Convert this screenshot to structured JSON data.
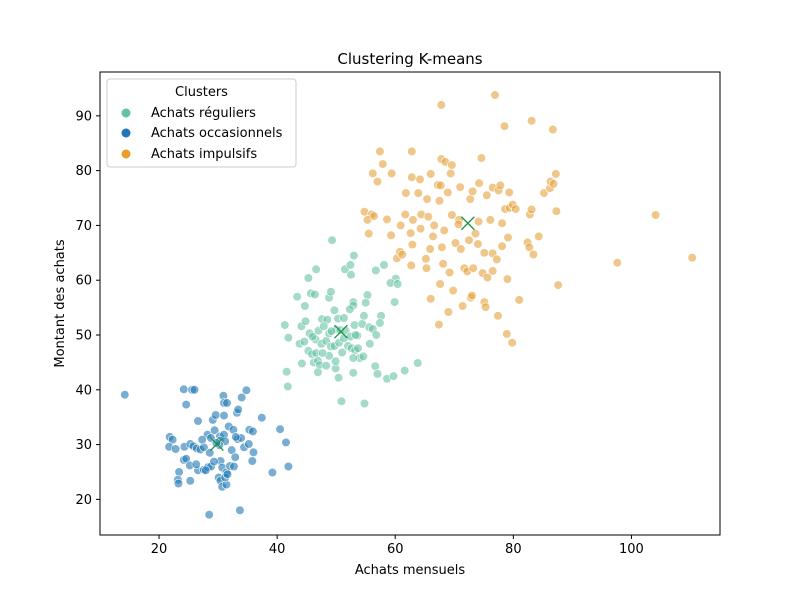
{
  "chart_data": {
    "type": "scatter",
    "title": "Clustering K-means",
    "xlabel": "Achats mensuels",
    "ylabel": "Montant des achats",
    "xlim": [
      10,
      115
    ],
    "ylim": [
      13.5,
      98
    ],
    "xticks": [
      20,
      40,
      60,
      80,
      100
    ],
    "yticks": [
      20,
      30,
      40,
      50,
      60,
      70,
      80,
      90
    ],
    "grid": false,
    "legend": {
      "title": "Clusters",
      "position": "top-left"
    },
    "series": [
      {
        "name": "Achats réguliers",
        "color": "#66c2a5",
        "points": [
          [
            49.3,
            67.3
          ],
          [
            51.5,
            62.0
          ],
          [
            52.4,
            62.8
          ],
          [
            53.0,
            64.5
          ],
          [
            46.6,
            62.0
          ],
          [
            45.3,
            60.4
          ],
          [
            52.5,
            61.0
          ],
          [
            43.4,
            57.0
          ],
          [
            44.7,
            55.3
          ],
          [
            45.7,
            57.6
          ],
          [
            46.4,
            57.4
          ],
          [
            48.8,
            56.8
          ],
          [
            49.1,
            57.9
          ],
          [
            52.9,
            56.0
          ],
          [
            52.9,
            55.4
          ],
          [
            55.3,
            57.3
          ],
          [
            56.7,
            61.8
          ],
          [
            58.1,
            62.8
          ],
          [
            60.1,
            60.3
          ],
          [
            59.2,
            59.5
          ],
          [
            60.4,
            59.3
          ],
          [
            59.9,
            56.0
          ],
          [
            41.3,
            51.8
          ],
          [
            41.9,
            49.5
          ],
          [
            44.1,
            51.6
          ],
          [
            44.8,
            52.5
          ],
          [
            45.5,
            50.3
          ],
          [
            46.5,
            49.2
          ],
          [
            47.0,
            50.8
          ],
          [
            47.6,
            52.9
          ],
          [
            48.5,
            52.8
          ],
          [
            49.7,
            54.5
          ],
          [
            50.3,
            53.0
          ],
          [
            51.3,
            53.1
          ],
          [
            52.3,
            54.7
          ],
          [
            53.1,
            51.8
          ],
          [
            53.6,
            49.9
          ],
          [
            54.4,
            52.0
          ],
          [
            54.7,
            53.5
          ],
          [
            55.6,
            51.4
          ],
          [
            56.2,
            51.1
          ],
          [
            56.8,
            50.0
          ],
          [
            57.6,
            53.5
          ],
          [
            57.4,
            52.2
          ],
          [
            55.0,
            55.9
          ],
          [
            43.8,
            48.4
          ],
          [
            44.6,
            48.8
          ],
          [
            45.3,
            47.1
          ],
          [
            45.9,
            46.5
          ],
          [
            46.6,
            46.7
          ],
          [
            47.5,
            48.4
          ],
          [
            48.3,
            48.9
          ],
          [
            49.1,
            47.9
          ],
          [
            49.7,
            48.0
          ],
          [
            50.5,
            48.6
          ],
          [
            51.3,
            49.4
          ],
          [
            52.0,
            48.0
          ],
          [
            52.6,
            47.6
          ],
          [
            53.2,
            47.2
          ],
          [
            54.0,
            45.8
          ],
          [
            54.6,
            46.1
          ],
          [
            47.9,
            51.6
          ],
          [
            48.8,
            50.3
          ],
          [
            50.0,
            51.0
          ],
          [
            50.7,
            50.9
          ],
          [
            51.6,
            50.8
          ],
          [
            52.4,
            49.7
          ],
          [
            53.3,
            50.0
          ],
          [
            46.2,
            45.0
          ],
          [
            46.9,
            45.3
          ],
          [
            47.2,
            44.5
          ],
          [
            48.3,
            44.4
          ],
          [
            46.9,
            43.2
          ],
          [
            48.8,
            46.2
          ],
          [
            49.9,
            43.9
          ],
          [
            50.4,
            42.2
          ],
          [
            52.9,
            43.1
          ],
          [
            56.6,
            44.3
          ],
          [
            57.0,
            42.9
          ],
          [
            58.6,
            42.0
          ],
          [
            59.7,
            42.5
          ],
          [
            61.6,
            43.5
          ],
          [
            63.8,
            44.9
          ],
          [
            52.9,
            45.8
          ],
          [
            41.6,
            43.3
          ],
          [
            41.8,
            40.6
          ],
          [
            50.9,
            37.9
          ],
          [
            54.8,
            37.5
          ],
          [
            44.2,
            44.8
          ],
          [
            49.2,
            50.7
          ],
          [
            55.7,
            48.4
          ],
          [
            51.0,
            46.8
          ],
          [
            49.9,
            45.2
          ],
          [
            53.7,
            47.6
          ],
          [
            46.0,
            49.7
          ],
          [
            47.7,
            46.7
          ]
        ]
      },
      {
        "name": "Achats occasionnels",
        "color": "#1f78b4",
        "points": [
          [
            14.2,
            39.1
          ],
          [
            24.2,
            40.1
          ],
          [
            25.6,
            40.0
          ],
          [
            26.0,
            40.0
          ],
          [
            24.6,
            37.3
          ],
          [
            30.9,
            38.9
          ],
          [
            31.0,
            37.6
          ],
          [
            31.5,
            37.6
          ],
          [
            34.0,
            38.6
          ],
          [
            34.8,
            39.9
          ],
          [
            26.6,
            34.3
          ],
          [
            29.1,
            34.5
          ],
          [
            29.6,
            35.4
          ],
          [
            31.0,
            35.3
          ],
          [
            31.8,
            33.3
          ],
          [
            33.2,
            35.8
          ],
          [
            33.4,
            36.4
          ],
          [
            37.4,
            34.9
          ],
          [
            40.5,
            32.8
          ],
          [
            28.2,
            31.8
          ],
          [
            28.8,
            31.2
          ],
          [
            29.4,
            32.6
          ],
          [
            30.3,
            31.5
          ],
          [
            31.0,
            31.8
          ],
          [
            32.6,
            32.7
          ],
          [
            33.3,
            31.0
          ],
          [
            33.9,
            31.2
          ],
          [
            35.3,
            32.7
          ],
          [
            35.9,
            32.4
          ],
          [
            41.5,
            30.4
          ],
          [
            21.8,
            31.4
          ],
          [
            22.3,
            30.9
          ],
          [
            21.7,
            29.6
          ],
          [
            22.8,
            29.2
          ],
          [
            24.3,
            29.6
          ],
          [
            25.3,
            30.1
          ],
          [
            25.8,
            29.7
          ],
          [
            26.4,
            29.3
          ],
          [
            27.0,
            29.1
          ],
          [
            27.6,
            29.5
          ],
          [
            28.6,
            28.5
          ],
          [
            30.3,
            30.7
          ],
          [
            31.2,
            30.6
          ],
          [
            32.3,
            29.0
          ],
          [
            33.0,
            31.4
          ],
          [
            34.4,
            29.5
          ],
          [
            35.2,
            30.1
          ],
          [
            36.0,
            28.6
          ],
          [
            24.2,
            27.2
          ],
          [
            24.6,
            27.4
          ],
          [
            25.2,
            26.2
          ],
          [
            26.6,
            25.3
          ],
          [
            27.6,
            25.4
          ],
          [
            28.3,
            25.9
          ],
          [
            28.8,
            26.0
          ],
          [
            30.4,
            27.0
          ],
          [
            30.7,
            25.8
          ],
          [
            31.4,
            24.9
          ],
          [
            32.0,
            26.1
          ],
          [
            32.7,
            26.0
          ],
          [
            35.8,
            27.0
          ],
          [
            39.2,
            24.9
          ],
          [
            41.9,
            26.0
          ],
          [
            23.4,
            25.0
          ],
          [
            23.2,
            23.6
          ],
          [
            23.3,
            22.9
          ],
          [
            25.3,
            23.4
          ],
          [
            26.3,
            26.4
          ],
          [
            27.9,
            25.3
          ],
          [
            30.1,
            24.0
          ],
          [
            30.4,
            23.4
          ],
          [
            30.7,
            22.3
          ],
          [
            31.4,
            22.7
          ],
          [
            31.2,
            24.0
          ],
          [
            31.6,
            24.6
          ],
          [
            29.3,
            26.9
          ],
          [
            28.5,
            17.2
          ],
          [
            33.7,
            18.0
          ],
          [
            30.2,
            29.9
          ],
          [
            29.7,
            30.3
          ],
          [
            27.3,
            30.9
          ],
          [
            32.9,
            27.7
          ]
        ]
      },
      {
        "name": "Achats impulsifs",
        "color": "#e6a23c",
        "points": [
          [
            67.8,
            92.0
          ],
          [
            76.9,
            93.8
          ],
          [
            78.5,
            88.1
          ],
          [
            83.1,
            89.1
          ],
          [
            86.7,
            87.5
          ],
          [
            57.4,
            83.5
          ],
          [
            62.8,
            83.5
          ],
          [
            57.9,
            81.2
          ],
          [
            67.8,
            82.1
          ],
          [
            68.5,
            81.6
          ],
          [
            69.6,
            81.0
          ],
          [
            74.6,
            82.3
          ],
          [
            57.0,
            78.0
          ],
          [
            56.2,
            79.5
          ],
          [
            59.4,
            79.5
          ],
          [
            61.8,
            75.9
          ],
          [
            62.8,
            78.8
          ],
          [
            64.2,
            78.4
          ],
          [
            66.0,
            79.4
          ],
          [
            67.2,
            77.4
          ],
          [
            67.7,
            77.3
          ],
          [
            67.5,
            74.5
          ],
          [
            68.9,
            76.0
          ],
          [
            69.4,
            79.5
          ],
          [
            71.0,
            77.0
          ],
          [
            72.7,
            74.8
          ],
          [
            73.1,
            76.2
          ],
          [
            74.2,
            77.7
          ],
          [
            75.5,
            75.5
          ],
          [
            76.5,
            76.9
          ],
          [
            77.5,
            76.4
          ],
          [
            77.8,
            77.3
          ],
          [
            79.3,
            76.0
          ],
          [
            78.6,
            73.0
          ],
          [
            79.4,
            73.2
          ],
          [
            79.9,
            73.8
          ],
          [
            80.4,
            73.0
          ],
          [
            82.8,
            72.0
          ],
          [
            83.1,
            72.9
          ],
          [
            85.2,
            75.9
          ],
          [
            86.2,
            76.8
          ],
          [
            86.3,
            78.0
          ],
          [
            86.8,
            77.6
          ],
          [
            87.2,
            79.4
          ],
          [
            87.3,
            72.6
          ],
          [
            54.8,
            72.5
          ],
          [
            56.0,
            72.0
          ],
          [
            55.3,
            71.0
          ],
          [
            56.4,
            71.7
          ],
          [
            58.6,
            71.1
          ],
          [
            60.9,
            70.0
          ],
          [
            61.7,
            72.0
          ],
          [
            63.0,
            71.0
          ],
          [
            64.4,
            72.0
          ],
          [
            65.6,
            71.6
          ],
          [
            66.6,
            70.0
          ],
          [
            68.3,
            69.1
          ],
          [
            69.6,
            71.9
          ],
          [
            70.8,
            71.0
          ],
          [
            74.1,
            70.7
          ],
          [
            76.1,
            71.0
          ],
          [
            55.5,
            68.5
          ],
          [
            59.3,
            68.2
          ],
          [
            60.3,
            64.0
          ],
          [
            60.8,
            65.2
          ],
          [
            62.6,
            68.6
          ],
          [
            62.9,
            66.5
          ],
          [
            64.3,
            69.4
          ],
          [
            65.9,
            65.7
          ],
          [
            66.4,
            68.0
          ],
          [
            67.9,
            66.0
          ],
          [
            70.2,
            66.8
          ],
          [
            71.1,
            65.7
          ],
          [
            72.5,
            67.3
          ],
          [
            74.0,
            66.6
          ],
          [
            75.1,
            65.0
          ],
          [
            76.5,
            64.9
          ],
          [
            77.2,
            63.8
          ],
          [
            78.1,
            66.2
          ],
          [
            79.1,
            67.8
          ],
          [
            82.4,
            66.9
          ],
          [
            82.7,
            66.0
          ],
          [
            84.3,
            68.0
          ],
          [
            83.4,
            64.7
          ],
          [
            61.2,
            64.7
          ],
          [
            62.7,
            62.7
          ],
          [
            65.2,
            63.9
          ],
          [
            65.3,
            62.2
          ],
          [
            68.1,
            63.0
          ],
          [
            69.2,
            61.4
          ],
          [
            71.7,
            62.2
          ],
          [
            72.2,
            61.6
          ],
          [
            73.2,
            62.2
          ],
          [
            74.8,
            61.3
          ],
          [
            75.6,
            60.5
          ],
          [
            76.5,
            61.7
          ],
          [
            79.0,
            60.2
          ],
          [
            67.6,
            59.3
          ],
          [
            69.8,
            58.1
          ],
          [
            72.8,
            56.8
          ],
          [
            73.0,
            57.2
          ],
          [
            75.1,
            56.0
          ],
          [
            75.3,
            55.1
          ],
          [
            77.4,
            53.5
          ],
          [
            78.9,
            50.2
          ],
          [
            79.8,
            48.6
          ],
          [
            81.0,
            56.4
          ],
          [
            71.4,
            55.3
          ],
          [
            66.0,
            56.6
          ],
          [
            67.4,
            51.9
          ],
          [
            69.0,
            54.2
          ],
          [
            87.6,
            59.1
          ],
          [
            97.6,
            63.2
          ],
          [
            104.1,
            71.9
          ],
          [
            110.3,
            64.1
          ],
          [
            70.7,
            70.2
          ],
          [
            73.6,
            68.5
          ],
          [
            63.9,
            75.9
          ],
          [
            65.4,
            74.8
          ],
          [
            78.1,
            70.4
          ]
        ]
      }
    ],
    "centroids": {
      "color": "#1a9641",
      "marker": "x",
      "points": [
        [
          29.8,
          30.1
        ],
        [
          50.8,
          50.6
        ],
        [
          72.3,
          70.4
        ]
      ]
    }
  }
}
